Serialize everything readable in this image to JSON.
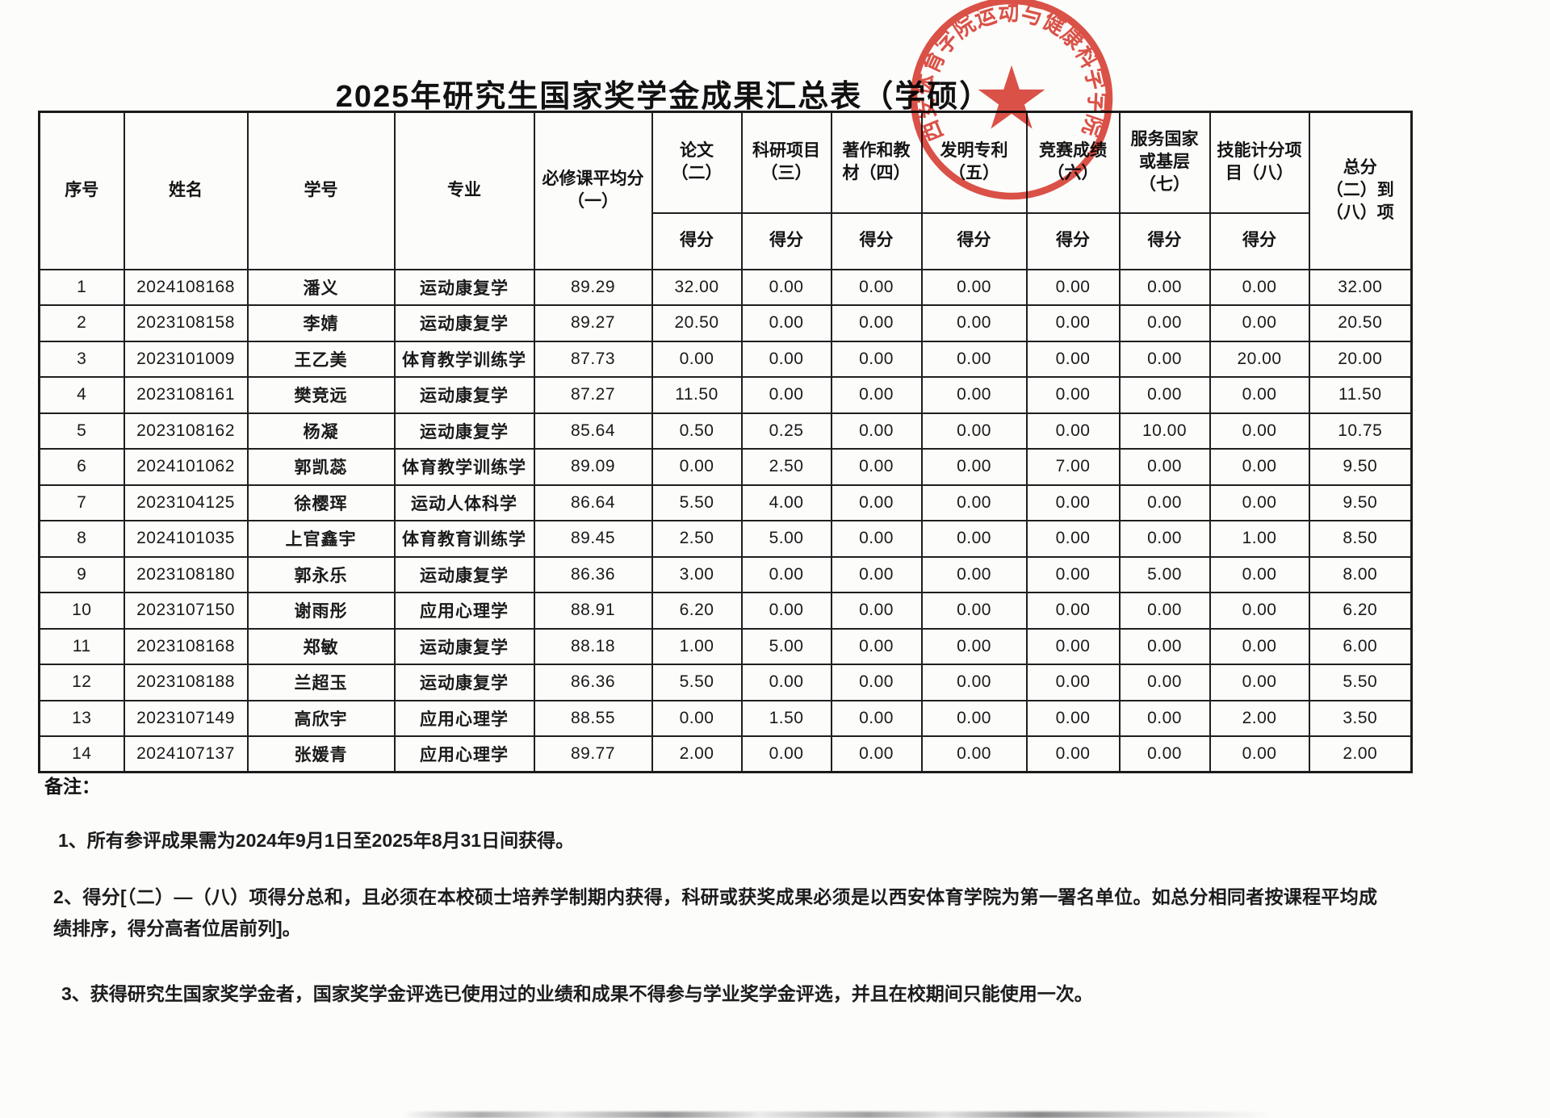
{
  "document": {
    "title": "2025年研究生国家奖学金成果汇总表（学硕）",
    "notes_label": "备注：",
    "notes": [
      "1、所有参评成果需为2024年9月1日至2025年8月31日间获得。",
      "2、得分[（二）—（八）项得分总和，且必须在本校硕士培养学制期内获得，科研或获奖成果必须是以西安体育学院为第一署名单位。如总分相同者按课程平均成绩排序，得分高者位居前列]。",
      "3、获得研究生国家奖学金者，国家奖学金评选已使用过的业绩和成果不得参与学业奖学金评选，并且在校期间只能使用一次。"
    ]
  },
  "stamp": {
    "circle_text": "西安体育学院运动与健康科学学院",
    "star_icon": "★",
    "color": "#d93a2e"
  },
  "table": {
    "headers": {
      "col_index": "序号",
      "col_name": "姓名",
      "col_student_id": "学号",
      "col_major": "专业",
      "col_avg": "必修课平均分\n（一）",
      "col_paper": "论文\n（二）",
      "col_research": "科研项目\n（三）",
      "col_books": "著作和教\n材（四）",
      "col_patent": "发明专利\n（五）",
      "col_competition": "竞赛成绩\n（六）",
      "col_service": "服务国家\n或基层\n（七）",
      "col_skill": "技能计分项\n目（八）",
      "col_total": "总分\n（二）到\n（八）项",
      "subheader_score": "得分"
    },
    "rows": [
      [
        "1",
        "2024108168",
        "潘义",
        "运动康复学",
        "89.29",
        "32.00",
        "0.00",
        "0.00",
        "0.00",
        "0.00",
        "0.00",
        "0.00",
        "32.00"
      ],
      [
        "2",
        "2023108158",
        "李婧",
        "运动康复学",
        "89.27",
        "20.50",
        "0.00",
        "0.00",
        "0.00",
        "0.00",
        "0.00",
        "0.00",
        "20.50"
      ],
      [
        "3",
        "2023101009",
        "王乙美",
        "体育教学训练学",
        "87.73",
        "0.00",
        "0.00",
        "0.00",
        "0.00",
        "0.00",
        "0.00",
        "20.00",
        "20.00"
      ],
      [
        "4",
        "2023108161",
        "樊竞远",
        "运动康复学",
        "87.27",
        "11.50",
        "0.00",
        "0.00",
        "0.00",
        "0.00",
        "0.00",
        "0.00",
        "11.50"
      ],
      [
        "5",
        "2023108162",
        "杨凝",
        "运动康复学",
        "85.64",
        "0.50",
        "0.25",
        "0.00",
        "0.00",
        "0.00",
        "10.00",
        "0.00",
        "10.75"
      ],
      [
        "6",
        "2024101062",
        "郭凯蕊",
        "体育教学训练学",
        "89.09",
        "0.00",
        "2.50",
        "0.00",
        "0.00",
        "7.00",
        "0.00",
        "0.00",
        "9.50"
      ],
      [
        "7",
        "2023104125",
        "徐樱珲",
        "运动人体科学",
        "86.64",
        "5.50",
        "4.00",
        "0.00",
        "0.00",
        "0.00",
        "0.00",
        "0.00",
        "9.50"
      ],
      [
        "8",
        "2024101035",
        "上官鑫宇",
        "体育教育训练学",
        "89.45",
        "2.50",
        "5.00",
        "0.00",
        "0.00",
        "0.00",
        "0.00",
        "1.00",
        "8.50"
      ],
      [
        "9",
        "2023108180",
        "郭永乐",
        "运动康复学",
        "86.36",
        "3.00",
        "0.00",
        "0.00",
        "0.00",
        "0.00",
        "5.00",
        "0.00",
        "8.00"
      ],
      [
        "10",
        "2023107150",
        "谢雨彤",
        "应用心理学",
        "88.91",
        "6.20",
        "0.00",
        "0.00",
        "0.00",
        "0.00",
        "0.00",
        "0.00",
        "6.20"
      ],
      [
        "11",
        "2023108168",
        "郑敏",
        "运动康复学",
        "88.18",
        "1.00",
        "5.00",
        "0.00",
        "0.00",
        "0.00",
        "0.00",
        "0.00",
        "6.00"
      ],
      [
        "12",
        "2023108188",
        "兰超玉",
        "运动康复学",
        "86.36",
        "5.50",
        "0.00",
        "0.00",
        "0.00",
        "0.00",
        "0.00",
        "0.00",
        "5.50"
      ],
      [
        "13",
        "2023107149",
        "高欣宇",
        "应用心理学",
        "88.55",
        "0.00",
        "1.50",
        "0.00",
        "0.00",
        "0.00",
        "0.00",
        "2.00",
        "3.50"
      ],
      [
        "14",
        "2024107137",
        "张媛青",
        "应用心理学",
        "89.77",
        "2.00",
        "0.00",
        "0.00",
        "0.00",
        "0.00",
        "0.00",
        "0.00",
        "2.00"
      ]
    ]
  }
}
